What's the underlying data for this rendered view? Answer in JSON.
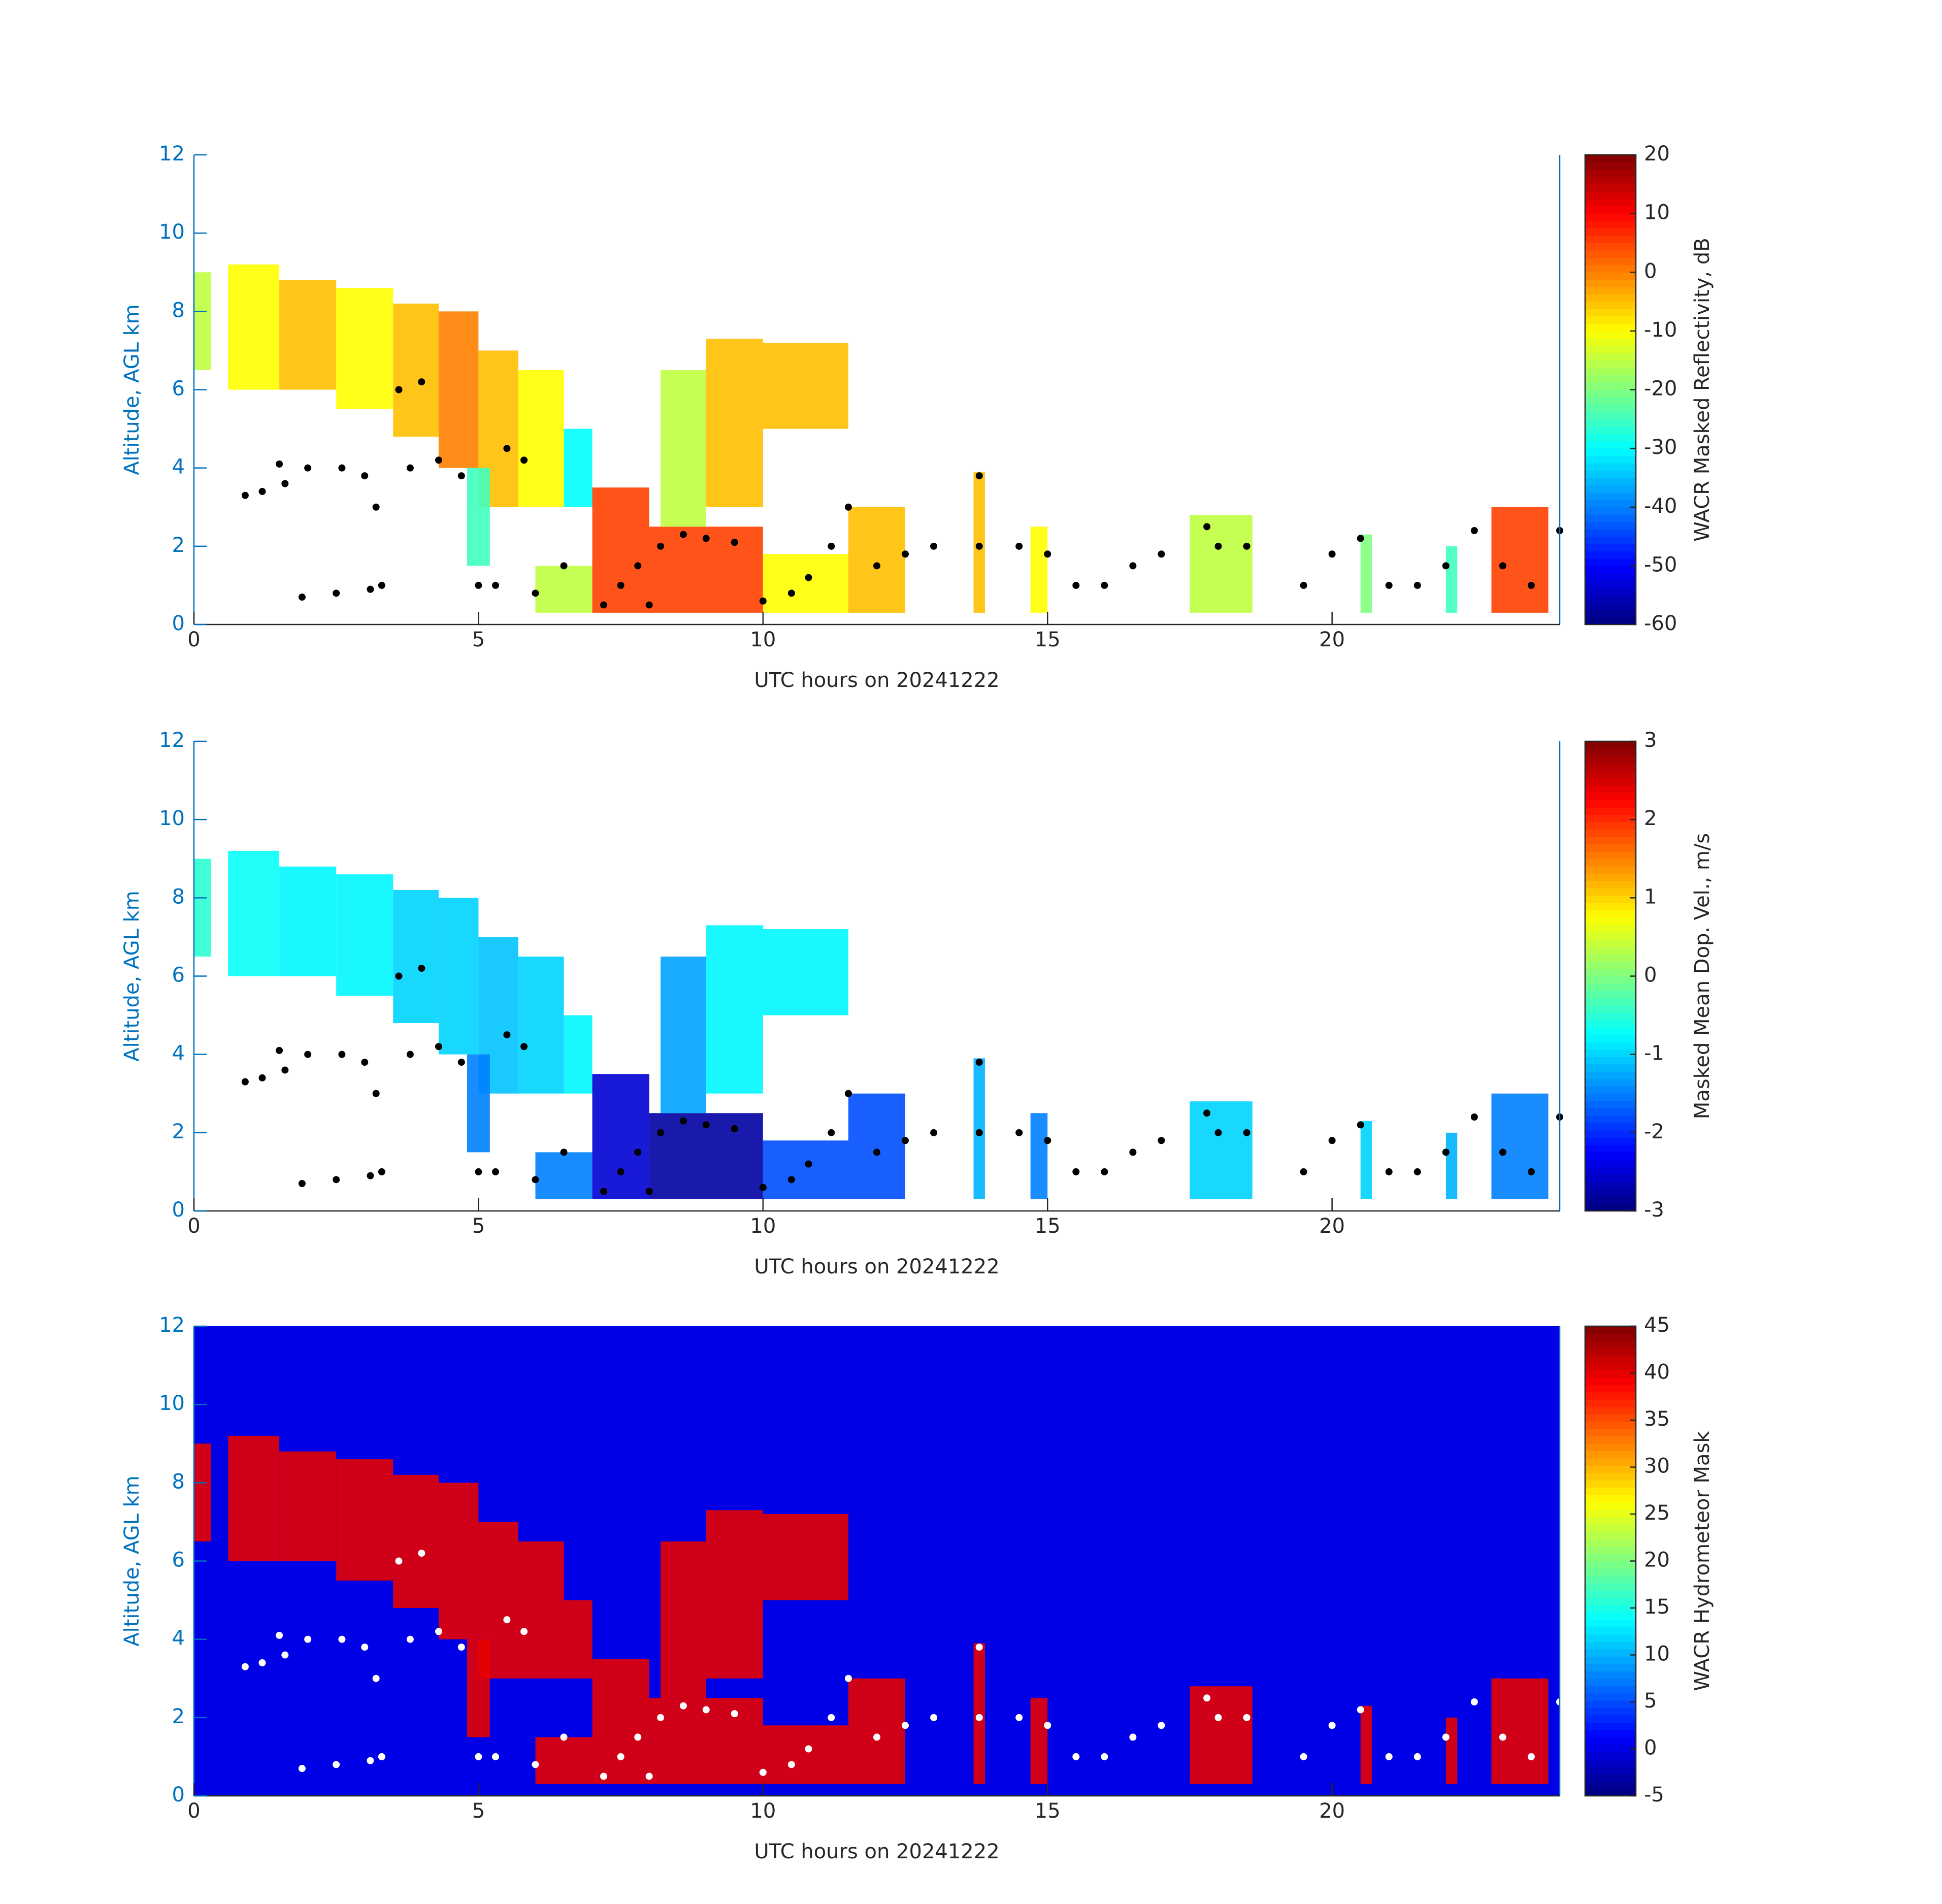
{
  "chart_data": [
    {
      "type": "heatmap",
      "x_label": "UTC hours on 20241222",
      "y_label": "Altitude, AGL km",
      "colorbar_label": "WACR Masked Reflectivity, dB",
      "xlim": [
        0,
        24
      ],
      "ylim": [
        0,
        12
      ],
      "xticks": [
        0,
        5,
        10,
        15,
        20
      ],
      "yticks": [
        0,
        2,
        4,
        6,
        8,
        10,
        12
      ],
      "clim": [
        -60,
        20
      ],
      "cticks": [
        -60,
        -50,
        -40,
        -30,
        -20,
        -10,
        0,
        10,
        20
      ],
      "colormap": "jet",
      "point_color": "#000000",
      "cells": [
        [
          0,
          0.3,
          6.5,
          9,
          -15
        ],
        [
          0.6,
          1.5,
          6,
          9.2,
          -10
        ],
        [
          1.5,
          2.5,
          6,
          8.8,
          -5
        ],
        [
          2.5,
          3.5,
          5.5,
          8.6,
          -10
        ],
        [
          3.5,
          4.3,
          4.8,
          8.2,
          -5
        ],
        [
          4.3,
          5,
          4,
          8,
          0
        ],
        [
          5,
          5.7,
          3,
          7,
          -5
        ],
        [
          5.7,
          6.5,
          3,
          6.5,
          -10
        ],
        [
          6.5,
          7,
          3,
          5,
          -30
        ],
        [
          4.8,
          5.2,
          1.5,
          4,
          -25
        ],
        [
          6,
          7,
          0.3,
          1.5,
          -15
        ],
        [
          7,
          8,
          0.3,
          3.5,
          5
        ],
        [
          8,
          9,
          0.3,
          2.5,
          5
        ],
        [
          8.2,
          9,
          2.5,
          6.5,
          -15
        ],
        [
          9,
          10,
          0.3,
          2.5,
          5
        ],
        [
          9,
          10,
          3,
          7.3,
          -5
        ],
        [
          10,
          11.5,
          5,
          7.2,
          -5
        ],
        [
          10,
          11.5,
          0.3,
          1.8,
          -10
        ],
        [
          11.5,
          12.5,
          0.3,
          3,
          -5
        ],
        [
          13.7,
          13.9,
          0.3,
          3.9,
          -5
        ],
        [
          14.7,
          15,
          0.3,
          2.5,
          -10
        ],
        [
          17.5,
          18.6,
          0.3,
          2.8,
          -15
        ],
        [
          20.5,
          20.7,
          0.3,
          2.3,
          -20
        ],
        [
          22,
          22.2,
          0.3,
          2,
          -25
        ],
        [
          22.8,
          23.8,
          0.3,
          3,
          5
        ]
      ],
      "points": [
        [
          0.9,
          3.3
        ],
        [
          1.2,
          3.4
        ],
        [
          1.6,
          3.6
        ],
        [
          1.5,
          4.1
        ],
        [
          2,
          4
        ],
        [
          2.6,
          4
        ],
        [
          3,
          3.8
        ],
        [
          3.2,
          3
        ],
        [
          2.5,
          0.8
        ],
        [
          3.1,
          0.9
        ],
        [
          3.3,
          1
        ],
        [
          1.9,
          0.7
        ],
        [
          3.6,
          6
        ],
        [
          3.8,
          4
        ],
        [
          4,
          6.2
        ],
        [
          4.3,
          4.2
        ],
        [
          4.7,
          3.8
        ],
        [
          5,
          1
        ],
        [
          5.5,
          4.5
        ],
        [
          5.8,
          4.2
        ],
        [
          5.3,
          1
        ],
        [
          6,
          0.8
        ],
        [
          6.5,
          1.5
        ],
        [
          7.2,
          0.5
        ],
        [
          7.5,
          1
        ],
        [
          7.8,
          1.5
        ],
        [
          8.2,
          2
        ],
        [
          8.6,
          2.3
        ],
        [
          9,
          2.2
        ],
        [
          9.5,
          2.1
        ],
        [
          8,
          0.5
        ],
        [
          10,
          0.6
        ],
        [
          10.5,
          0.8
        ],
        [
          10.8,
          1.2
        ],
        [
          11.2,
          2
        ],
        [
          11.5,
          3
        ],
        [
          12,
          1.5
        ],
        [
          12.5,
          1.8
        ],
        [
          13,
          2
        ],
        [
          13.8,
          3.8
        ],
        [
          13.8,
          2
        ],
        [
          14.5,
          2
        ],
        [
          15,
          1.8
        ],
        [
          15.5,
          1
        ],
        [
          16,
          1
        ],
        [
          16.5,
          1.5
        ],
        [
          17,
          1.8
        ],
        [
          17.8,
          2.5
        ],
        [
          18,
          2
        ],
        [
          18.5,
          2
        ],
        [
          19.5,
          1
        ],
        [
          20,
          1.8
        ],
        [
          20.5,
          2.2
        ],
        [
          21,
          1
        ],
        [
          21.5,
          1
        ],
        [
          22,
          1.5
        ],
        [
          22.5,
          2.4
        ],
        [
          23,
          1.5
        ],
        [
          23.5,
          1
        ],
        [
          24,
          2.4
        ]
      ]
    },
    {
      "type": "heatmap",
      "x_label": "UTC hours on 20241222",
      "y_label": "Altitude, AGL km",
      "colorbar_label": "Masked Mean Dop. Vel., m/s",
      "xlim": [
        0,
        24
      ],
      "ylim": [
        0,
        12
      ],
      "xticks": [
        0,
        5,
        10,
        15,
        20
      ],
      "yticks": [
        0,
        2,
        4,
        6,
        8,
        10,
        12
      ],
      "clim": [
        -3,
        3
      ],
      "cticks": [
        -3,
        -2,
        -1,
        0,
        1,
        2,
        3
      ],
      "colormap": "jet",
      "point_color": "#000000",
      "cells": [
        [
          0,
          0.3,
          6.5,
          9,
          -0.5
        ],
        [
          0.6,
          1.5,
          6,
          9.2,
          -0.7
        ],
        [
          1.5,
          2.5,
          6,
          8.8,
          -0.8
        ],
        [
          2.5,
          3.5,
          5.5,
          8.6,
          -0.8
        ],
        [
          3.5,
          4.3,
          4.8,
          8.2,
          -1
        ],
        [
          4.3,
          5,
          4,
          8,
          -1
        ],
        [
          5,
          5.7,
          3,
          7,
          -1.1
        ],
        [
          5.7,
          6.5,
          3,
          6.5,
          -1
        ],
        [
          6.5,
          7,
          3,
          5,
          -0.8
        ],
        [
          4.8,
          5.2,
          1.5,
          4,
          -1.5
        ],
        [
          6,
          7,
          0.3,
          1.5,
          -1.5
        ],
        [
          7,
          8,
          0.3,
          3.5,
          -2.5
        ],
        [
          8,
          9,
          0.3,
          2.5,
          -2.8
        ],
        [
          8.2,
          9,
          2.5,
          6.5,
          -1.3
        ],
        [
          9,
          10,
          0.3,
          2.5,
          -2.8
        ],
        [
          9,
          10,
          3,
          7.3,
          -0.8
        ],
        [
          10,
          11.5,
          5,
          7.2,
          -0.8
        ],
        [
          10,
          11.5,
          0.3,
          1.8,
          -1.8
        ],
        [
          11.5,
          12.5,
          0.3,
          3,
          -1.8
        ],
        [
          13.7,
          13.9,
          0.3,
          3.9,
          -1.2
        ],
        [
          14.7,
          15,
          0.3,
          2.5,
          -1.5
        ],
        [
          17.5,
          18.6,
          0.3,
          2.8,
          -1
        ],
        [
          20.5,
          20.7,
          0.3,
          2.3,
          -1
        ],
        [
          22,
          22.2,
          0.3,
          2,
          -1.2
        ],
        [
          22.8,
          23.8,
          0.3,
          3,
          -1.5
        ]
      ],
      "points": [
        [
          0.9,
          3.3
        ],
        [
          1.2,
          3.4
        ],
        [
          1.6,
          3.6
        ],
        [
          1.5,
          4.1
        ],
        [
          2,
          4
        ],
        [
          2.6,
          4
        ],
        [
          3,
          3.8
        ],
        [
          3.2,
          3
        ],
        [
          2.5,
          0.8
        ],
        [
          3.1,
          0.9
        ],
        [
          3.3,
          1
        ],
        [
          1.9,
          0.7
        ],
        [
          3.6,
          6
        ],
        [
          3.8,
          4
        ],
        [
          4,
          6.2
        ],
        [
          4.3,
          4.2
        ],
        [
          4.7,
          3.8
        ],
        [
          5,
          1
        ],
        [
          5.5,
          4.5
        ],
        [
          5.8,
          4.2
        ],
        [
          5.3,
          1
        ],
        [
          6,
          0.8
        ],
        [
          6.5,
          1.5
        ],
        [
          7.2,
          0.5
        ],
        [
          7.5,
          1
        ],
        [
          7.8,
          1.5
        ],
        [
          8.2,
          2
        ],
        [
          8.6,
          2.3
        ],
        [
          9,
          2.2
        ],
        [
          9.5,
          2.1
        ],
        [
          8,
          0.5
        ],
        [
          10,
          0.6
        ],
        [
          10.5,
          0.8
        ],
        [
          10.8,
          1.2
        ],
        [
          11.2,
          2
        ],
        [
          11.5,
          3
        ],
        [
          12,
          1.5
        ],
        [
          12.5,
          1.8
        ],
        [
          13,
          2
        ],
        [
          13.8,
          3.8
        ],
        [
          13.8,
          2
        ],
        [
          14.5,
          2
        ],
        [
          15,
          1.8
        ],
        [
          15.5,
          1
        ],
        [
          16,
          1
        ],
        [
          16.5,
          1.5
        ],
        [
          17,
          1.8
        ],
        [
          17.8,
          2.5
        ],
        [
          18,
          2
        ],
        [
          18.5,
          2
        ],
        [
          19.5,
          1
        ],
        [
          20,
          1.8
        ],
        [
          20.5,
          2.2
        ],
        [
          21,
          1
        ],
        [
          21.5,
          1
        ],
        [
          22,
          1.5
        ],
        [
          22.5,
          2.4
        ],
        [
          23,
          1.5
        ],
        [
          23.5,
          1
        ],
        [
          24,
          2.4
        ]
      ]
    },
    {
      "type": "heatmap",
      "x_label": "UTC hours on 20241222",
      "y_label": "Altitude, AGL km",
      "colorbar_label": "WACR Hydrometeor Mask",
      "xlim": [
        0,
        24
      ],
      "ylim": [
        0,
        12
      ],
      "xticks": [
        0,
        5,
        10,
        15,
        20
      ],
      "yticks": [
        0,
        2,
        4,
        6,
        8,
        10,
        12
      ],
      "clim": [
        -5,
        45
      ],
      "cticks": [
        -5,
        0,
        5,
        10,
        15,
        20,
        25,
        30,
        35,
        40,
        45
      ],
      "colormap": "jet",
      "point_color": "#ffffff",
      "background": 0,
      "cells": [
        [
          0,
          0.3,
          6.5,
          9,
          40
        ],
        [
          0.6,
          1.5,
          6,
          9.2,
          40
        ],
        [
          1.5,
          2.5,
          6,
          8.8,
          40
        ],
        [
          2.5,
          3.5,
          5.5,
          8.6,
          40
        ],
        [
          3.5,
          4.3,
          4.8,
          8.2,
          40
        ],
        [
          4.3,
          5,
          4,
          8,
          40
        ],
        [
          5,
          5.7,
          3,
          7,
          40
        ],
        [
          5.7,
          6.5,
          3,
          6.5,
          40
        ],
        [
          6.5,
          7,
          3,
          5,
          40
        ],
        [
          4.8,
          5.2,
          1.5,
          4,
          40
        ],
        [
          6,
          7,
          0.3,
          1.5,
          40
        ],
        [
          7,
          8,
          0.3,
          3.5,
          40
        ],
        [
          8,
          9,
          0.3,
          2.5,
          40
        ],
        [
          8.2,
          9,
          2.5,
          6.5,
          40
        ],
        [
          9,
          10,
          0.3,
          2.5,
          40
        ],
        [
          9,
          10,
          3,
          7.3,
          40
        ],
        [
          10,
          11.5,
          5,
          7.2,
          40
        ],
        [
          10,
          11.5,
          0.3,
          1.8,
          40
        ],
        [
          11.5,
          12.5,
          0.3,
          3,
          40
        ],
        [
          13.7,
          13.9,
          0.3,
          3.9,
          40
        ],
        [
          14.7,
          15,
          0.3,
          2.5,
          40
        ],
        [
          17.5,
          18.6,
          0.3,
          2.8,
          40
        ],
        [
          20.5,
          20.7,
          0.3,
          2.3,
          40
        ],
        [
          22,
          22.2,
          0.3,
          2,
          40
        ],
        [
          22.8,
          23.8,
          0.3,
          3,
          40
        ]
      ],
      "points": [
        [
          0.9,
          3.3
        ],
        [
          1.2,
          3.4
        ],
        [
          1.6,
          3.6
        ],
        [
          1.5,
          4.1
        ],
        [
          2,
          4
        ],
        [
          2.6,
          4
        ],
        [
          3,
          3.8
        ],
        [
          3.2,
          3
        ],
        [
          2.5,
          0.8
        ],
        [
          3.1,
          0.9
        ],
        [
          3.3,
          1
        ],
        [
          1.9,
          0.7
        ],
        [
          3.6,
          6
        ],
        [
          3.8,
          4
        ],
        [
          4,
          6.2
        ],
        [
          4.3,
          4.2
        ],
        [
          4.7,
          3.8
        ],
        [
          5,
          1
        ],
        [
          5.5,
          4.5
        ],
        [
          5.8,
          4.2
        ],
        [
          5.3,
          1
        ],
        [
          6,
          0.8
        ],
        [
          6.5,
          1.5
        ],
        [
          7.2,
          0.5
        ],
        [
          7.5,
          1
        ],
        [
          7.8,
          1.5
        ],
        [
          8.2,
          2
        ],
        [
          8.6,
          2.3
        ],
        [
          9,
          2.2
        ],
        [
          9.5,
          2.1
        ],
        [
          8,
          0.5
        ],
        [
          10,
          0.6
        ],
        [
          10.5,
          0.8
        ],
        [
          10.8,
          1.2
        ],
        [
          11.2,
          2
        ],
        [
          11.5,
          3
        ],
        [
          12,
          1.5
        ],
        [
          12.5,
          1.8
        ],
        [
          13,
          2
        ],
        [
          13.8,
          3.8
        ],
        [
          13.8,
          2
        ],
        [
          14.5,
          2
        ],
        [
          15,
          1.8
        ],
        [
          15.5,
          1
        ],
        [
          16,
          1
        ],
        [
          16.5,
          1.5
        ],
        [
          17,
          1.8
        ],
        [
          17.8,
          2.5
        ],
        [
          18,
          2
        ],
        [
          18.5,
          2
        ],
        [
          19.5,
          1
        ],
        [
          20,
          1.8
        ],
        [
          20.5,
          2.2
        ],
        [
          21,
          1
        ],
        [
          21.5,
          1
        ],
        [
          22,
          1.5
        ],
        [
          22.5,
          2.4
        ],
        [
          23,
          1.5
        ],
        [
          23.5,
          1
        ],
        [
          24,
          2.4
        ]
      ]
    }
  ]
}
